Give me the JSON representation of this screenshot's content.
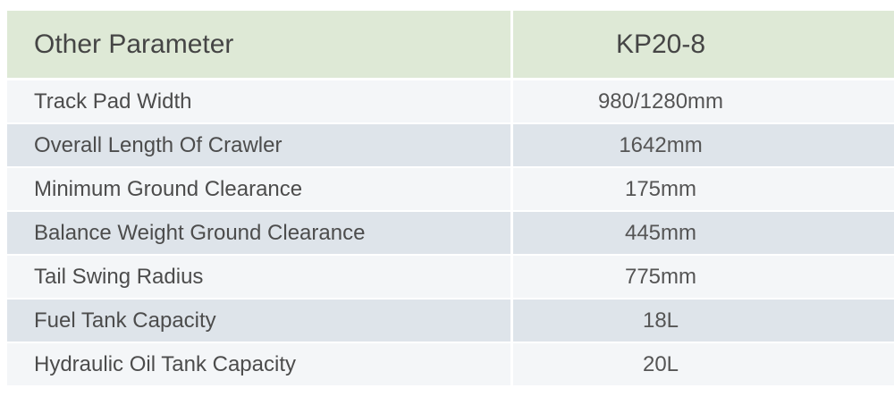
{
  "table": {
    "header": {
      "parameter_label": "Other Parameter",
      "model_label": "KP20-8"
    },
    "rows": [
      {
        "label": "Track Pad Width",
        "value": "980/1280mm"
      },
      {
        "label": "Overall Length Of Crawler",
        "value": "1642mm"
      },
      {
        "label": "Minimum Ground Clearance",
        "value": "175mm"
      },
      {
        "label": "Balance Weight Ground Clearance",
        "value": "445mm"
      },
      {
        "label": "Tail Swing Radius",
        "value": "775mm"
      },
      {
        "label": "Fuel Tank Capacity",
        "value": "18L"
      },
      {
        "label": "Hydraulic Oil Tank Capacity",
        "value": "20L"
      }
    ],
    "colors": {
      "header_background": "#dee9d6",
      "row_light_background": "#f4f6f8",
      "row_dark_background": "#dee4ea",
      "text": "#4c4c4c",
      "page_background": "#ffffff"
    }
  }
}
